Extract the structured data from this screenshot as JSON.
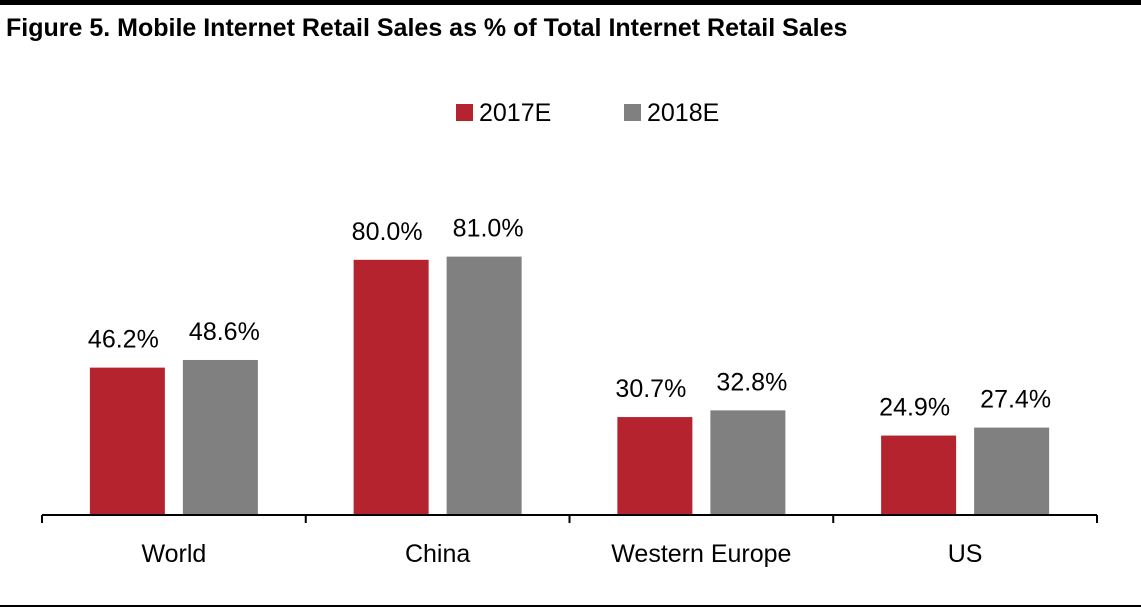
{
  "figure": {
    "title": "Figure 5. Mobile Internet Retail Sales as % of Total Internet Retail Sales"
  },
  "chart_data": {
    "type": "bar",
    "title": "Figure 5. Mobile Internet Retail Sales as % of Total Internet Retail Sales",
    "categories": [
      "World",
      "China",
      "Western Europe",
      "US"
    ],
    "series": [
      {
        "name": "2017E",
        "color": "#b5232f",
        "values": [
          46.2,
          80.0,
          30.7,
          24.9
        ],
        "labels": [
          "46.2%",
          "80.0%",
          "30.7%",
          "24.9%"
        ]
      },
      {
        "name": "2018E",
        "color": "#808080",
        "values": [
          48.6,
          81.0,
          32.8,
          27.4
        ],
        "labels": [
          "48.6%",
          "81.0%",
          "32.8%",
          "27.4%"
        ]
      }
    ],
    "ylim": [
      0,
      100
    ],
    "grid": false,
    "legend_position": "top-center",
    "xlabel": "",
    "ylabel": ""
  }
}
